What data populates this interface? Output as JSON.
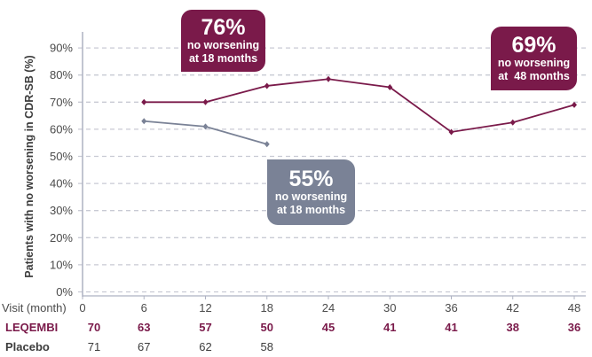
{
  "chart_data": {
    "type": "line",
    "title": "",
    "xlabel": "Visit (month)",
    "ylabel": "Patients with no worsening in CDR-SB (%)",
    "ylim": [
      0,
      90
    ],
    "y_ticks": [
      "0%",
      "10%",
      "20%",
      "30%",
      "40%",
      "50%",
      "60%",
      "70%",
      "80%",
      "90%"
    ],
    "x": [
      0,
      6,
      12,
      18,
      24,
      30,
      36,
      42,
      48
    ],
    "grid": "horizontal dashed",
    "series": [
      {
        "name": "LEQEMBI",
        "color": "#7a1a4a",
        "x": [
          6,
          12,
          18,
          24,
          30,
          36,
          42,
          48
        ],
        "values": [
          70,
          70,
          76,
          78.5,
          75.5,
          59,
          62.5,
          69
        ]
      },
      {
        "name": "Placebo",
        "color": "#7a8296",
        "x": [
          6,
          12,
          18
        ],
        "values": [
          63,
          61,
          54.5
        ]
      }
    ],
    "annotations": [
      {
        "value": "76%",
        "line1": "no worsening",
        "line2": "at 18 months",
        "series": "LEQEMBI"
      },
      {
        "value": "69%",
        "line1": "no worsening",
        "line2": "at  48 months",
        "series": "LEQEMBI"
      },
      {
        "value": "55%",
        "line1": "no worsening",
        "line2": "at 18 months",
        "series": "Placebo"
      }
    ],
    "at_risk_table": {
      "header_label": "Visit (month)",
      "visits": [
        "0",
        "6",
        "12",
        "18",
        "24",
        "30",
        "36",
        "42",
        "48"
      ],
      "rows": [
        {
          "label": "LEQEMBI",
          "values": [
            "70",
            "63",
            "57",
            "50",
            "45",
            "41",
            "41",
            "38",
            "36"
          ]
        },
        {
          "label": "Placebo",
          "values": [
            "71",
            "67",
            "62",
            "58"
          ]
        }
      ]
    }
  },
  "callouts": {
    "leq_18": {
      "big": "76%",
      "line1": "no worsening",
      "line2": "at 18 months"
    },
    "leq_48": {
      "big": "69%",
      "line1": "no worsening",
      "line2": "at  48 months"
    },
    "pla_18": {
      "big": "55%",
      "line1": "no worsening",
      "line2": "at 18 months"
    }
  },
  "colors": {
    "leqembi": "#7a1a4a",
    "placebo": "#7a8296",
    "grid": "#c8cad4",
    "axis": "#aeb2c2"
  }
}
